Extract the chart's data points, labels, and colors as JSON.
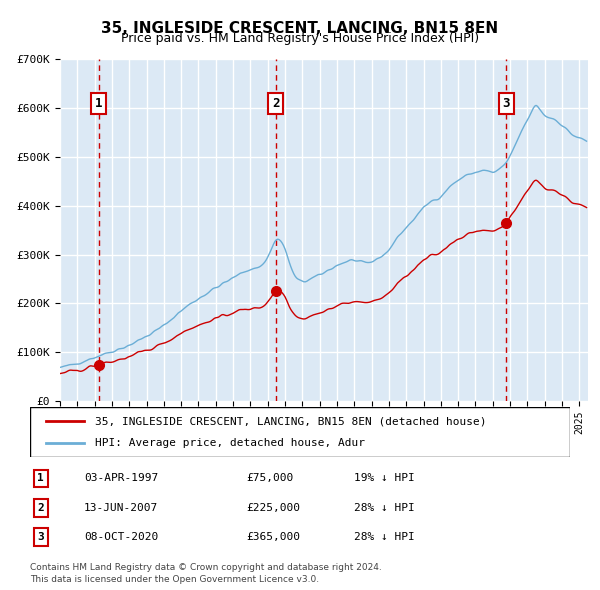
{
  "title": "35, INGLESIDE CRESCENT, LANCING, BN15 8EN",
  "subtitle": "Price paid vs. HM Land Registry's House Price Index (HPI)",
  "legend_line1": "35, INGLESIDE CRESCENT, LANCING, BN15 8EN (detached house)",
  "legend_line2": "HPI: Average price, detached house, Adur",
  "footer_line1": "Contains HM Land Registry data © Crown copyright and database right 2024.",
  "footer_line2": "This data is licensed under the Open Government Licence v3.0.",
  "sales": [
    {
      "num": 1,
      "date": "03-APR-1997",
      "price": 75000,
      "pct": "19%",
      "direction": "↓"
    },
    {
      "num": 2,
      "date": "13-JUN-2007",
      "price": 225000,
      "pct": "28%",
      "direction": "↓"
    },
    {
      "num": 3,
      "date": "08-OCT-2020",
      "price": 365000,
      "pct": "28%",
      "direction": "↓"
    }
  ],
  "sale_dates_decimal": [
    1997.25,
    2007.45,
    2020.77
  ],
  "sale_prices": [
    75000,
    225000,
    365000
  ],
  "vline_dates_decimal": [
    1997.25,
    2007.45,
    2020.77
  ],
  "hpi_color": "#6baed6",
  "price_color": "#cc0000",
  "bg_color": "#dce9f5",
  "grid_color": "#ffffff",
  "vline_color": "#cc0000",
  "ylim": [
    0,
    700000
  ],
  "yticks": [
    0,
    100000,
    200000,
    300000,
    400000,
    500000,
    600000,
    700000
  ],
  "xlim_start": 1995.0,
  "xlim_end": 2025.5
}
